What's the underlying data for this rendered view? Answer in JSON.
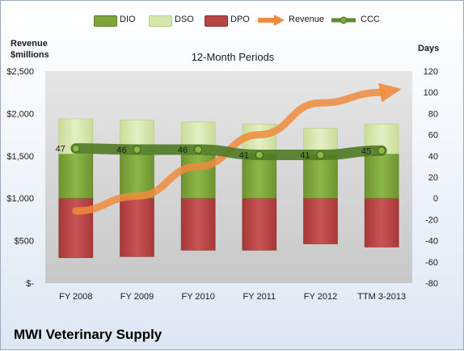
{
  "legend": [
    {
      "label": "DIO",
      "color": "#7fa43a",
      "icon": "bar-swatch"
    },
    {
      "label": "DSO",
      "color": "#d6e7ae",
      "icon": "bar-swatch"
    },
    {
      "label": "DPO",
      "color": "#b84545",
      "icon": "bar-swatch"
    },
    {
      "label": "Revenue",
      "color": "#f08b3c",
      "icon": "arrow-swatch"
    },
    {
      "label": "CCC",
      "color": "#5e8a2e",
      "icon": "line-marker-swatch"
    }
  ],
  "left_axis_title": "Revenue\n$millions",
  "right_axis_title": "Days",
  "subtitle": "12-Month Periods",
  "company": "MWI Veterinary Supply",
  "chart_data": {
    "type": "bar",
    "stacked": true,
    "categories": [
      "FY 2008",
      "FY 2009",
      "FY 2010",
      "FY 2011",
      "FY 2012",
      "TTM 3-2013"
    ],
    "series": [
      {
        "name": "DIO",
        "axis": "right",
        "values": [
          42,
          42,
          42,
          42,
          41,
          42
        ]
      },
      {
        "name": "DSO",
        "axis": "right",
        "values": [
          33,
          32,
          30,
          28,
          25,
          28
        ]
      },
      {
        "name": "DPO",
        "axis": "right",
        "values": [
          -56,
          -55,
          -49,
          -49,
          -43,
          -46
        ]
      },
      {
        "name": "Revenue",
        "axis": "left",
        "values": [
          -12,
          2,
          30,
          60,
          90,
          100
        ]
      },
      {
        "name": "CCC",
        "axis": "right",
        "values": [
          47,
          46,
          46,
          41,
          41,
          45
        ]
      }
    ],
    "left_axis": {
      "ticks": [
        "$-",
        "$500",
        "$1,000",
        "$1,500",
        "$2,000",
        "$2,500"
      ],
      "ylim": [
        0,
        2500
      ]
    },
    "right_axis": {
      "ticks": [
        "-80",
        "-60",
        "-40",
        "-20",
        "0",
        "20",
        "40",
        "60",
        "80",
        "100",
        "120"
      ],
      "ylim": [
        -80,
        120
      ]
    },
    "ccc_labels": [
      "47",
      "46",
      "46",
      "41",
      "41",
      "45"
    ],
    "grid": false,
    "legend_position": "top"
  }
}
